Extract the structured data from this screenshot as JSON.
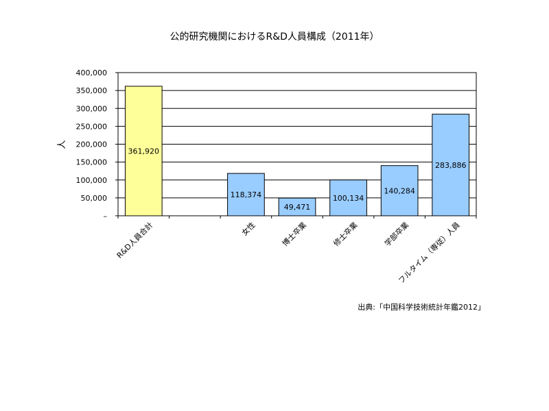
{
  "chart_data": {
    "type": "bar",
    "title": "公的研究機関におけるR&D人員構成（2011年）",
    "ylabel": "人",
    "xlabel": "",
    "ylim": [
      0,
      400000
    ],
    "yticks": [
      0,
      50000,
      100000,
      150000,
      200000,
      250000,
      300000,
      350000,
      400000
    ],
    "ytick_labels": [
      "–",
      "50,000",
      "100,000",
      "150,000",
      "200,000",
      "250,000",
      "300,000",
      "350,000",
      "400,000"
    ],
    "grid": true,
    "categories": [
      "R&D人員合計",
      "",
      "女性",
      "博士卒業",
      "修士卒業",
      "学部卒業",
      "フルタイム（専従）人員"
    ],
    "values": [
      361920,
      null,
      118374,
      49471,
      100134,
      140284,
      283886
    ],
    "value_labels": [
      "361,920",
      "",
      "118,374",
      "49,471",
      "100,134",
      "140,284",
      "283,886"
    ],
    "bar_colors": [
      "#FFFF99",
      null,
      "#99CCFF",
      "#99CCFF",
      "#99CCFF",
      "#99CCFF",
      "#99CCFF"
    ]
  },
  "source_note": "出典:「中国科学技術統計年鑑2012」"
}
